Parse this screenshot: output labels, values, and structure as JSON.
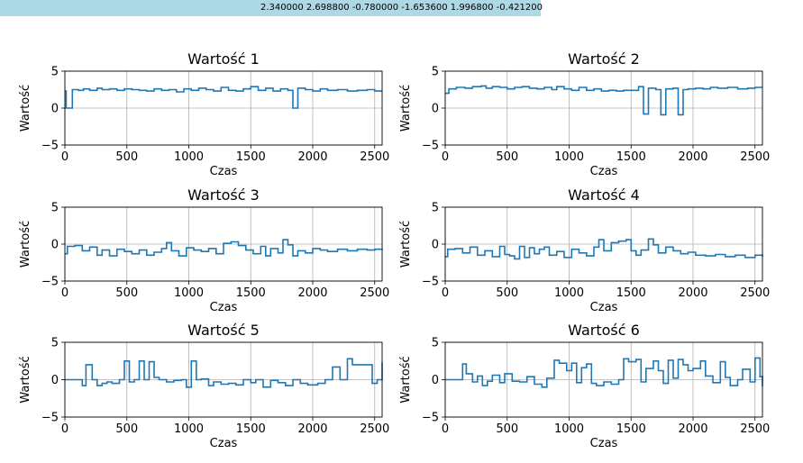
{
  "header": {
    "readout": "2.340000 2.698800 -0.780000 -1.653600 1.996800 -0.421200"
  },
  "colors": {
    "line": "#1f77b4",
    "grid": "#b0b0b0",
    "header_bg": "#add8e6"
  },
  "chart_data": [
    {
      "type": "line",
      "title": "Wartość 1",
      "xlabel": "Czas",
      "ylabel": "Wartość",
      "xlim": [
        0,
        2560
      ],
      "ylim": [
        -5,
        5
      ],
      "xticks": [
        0,
        500,
        1000,
        1500,
        2000,
        2500
      ],
      "yticks": [
        -5,
        0,
        5
      ],
      "xtick_labels": [
        "0",
        "500",
        "1000",
        "1500",
        "2000",
        "2500"
      ],
      "ytick_labels": [
        "−5",
        "0",
        "5"
      ],
      "grid": true,
      "series": [
        {
          "x": [
            0,
            10,
            60,
            110,
            150,
            200,
            260,
            300,
            360,
            420,
            480,
            540,
            600,
            660,
            720,
            780,
            840,
            900,
            960,
            1020,
            1080,
            1140,
            1200,
            1260,
            1320,
            1380,
            1440,
            1500,
            1560,
            1620,
            1680,
            1740,
            1800,
            1840,
            1880,
            1940,
            2000,
            2060,
            2120,
            2200,
            2280,
            2360,
            2440,
            2500,
            2560
          ],
          "y": [
            2.3,
            0.0,
            2.5,
            2.4,
            2.6,
            2.4,
            2.7,
            2.5,
            2.6,
            2.4,
            2.6,
            2.5,
            2.4,
            2.3,
            2.6,
            2.4,
            2.5,
            2.2,
            2.6,
            2.4,
            2.7,
            2.5,
            2.3,
            2.8,
            2.4,
            2.3,
            2.6,
            2.9,
            2.4,
            2.7,
            2.3,
            2.6,
            2.4,
            0.0,
            2.7,
            2.5,
            2.3,
            2.6,
            2.4,
            2.5,
            2.3,
            2.4,
            2.5,
            2.3,
            2.3
          ]
        }
      ]
    },
    {
      "type": "line",
      "title": "Wartość 2",
      "xlabel": "Czas",
      "ylabel": "Wartość",
      "xlim": [
        0,
        2560
      ],
      "ylim": [
        -5,
        5
      ],
      "xticks": [
        0,
        500,
        1000,
        1500,
        2000,
        2500
      ],
      "yticks": [
        -5,
        0,
        5
      ],
      "xtick_labels": [
        "0",
        "500",
        "1000",
        "1500",
        "2000",
        "2500"
      ],
      "ytick_labels": [
        "−5",
        "0",
        "5"
      ],
      "grid": true,
      "series": [
        {
          "x": [
            0,
            30,
            90,
            160,
            220,
            290,
            330,
            380,
            440,
            500,
            560,
            620,
            680,
            740,
            800,
            860,
            900,
            960,
            1020,
            1080,
            1140,
            1200,
            1260,
            1320,
            1380,
            1440,
            1500,
            1560,
            1600,
            1640,
            1700,
            1740,
            1780,
            1840,
            1880,
            1920,
            1960,
            2020,
            2080,
            2140,
            2200,
            2280,
            2360,
            2440,
            2500,
            2560
          ],
          "y": [
            2.0,
            2.6,
            2.8,
            2.7,
            2.9,
            3.0,
            2.7,
            2.9,
            2.8,
            2.6,
            2.8,
            2.9,
            2.7,
            2.6,
            2.8,
            2.5,
            2.9,
            2.6,
            2.4,
            2.8,
            2.4,
            2.6,
            2.3,
            2.4,
            2.3,
            2.4,
            2.4,
            2.9,
            -0.8,
            2.7,
            2.5,
            -0.9,
            2.6,
            2.7,
            -0.9,
            2.5,
            2.6,
            2.7,
            2.6,
            2.8,
            2.7,
            2.8,
            2.6,
            2.7,
            2.8,
            2.8
          ]
        }
      ]
    },
    {
      "type": "line",
      "title": "Wartość 3",
      "xlabel": "Czas",
      "ylabel": "Wartość",
      "xlim": [
        0,
        2560
      ],
      "ylim": [
        -5,
        5
      ],
      "xticks": [
        0,
        500,
        1000,
        1500,
        2000,
        2500
      ],
      "yticks": [
        -5,
        0,
        5
      ],
      "xtick_labels": [
        "0",
        "500",
        "1000",
        "1500",
        "2000",
        "2500"
      ],
      "ytick_labels": [
        "−5",
        "0",
        "5"
      ],
      "grid": true,
      "series": [
        {
          "x": [
            0,
            20,
            80,
            140,
            200,
            260,
            300,
            360,
            420,
            480,
            540,
            600,
            660,
            720,
            780,
            820,
            860,
            920,
            980,
            1040,
            1100,
            1160,
            1220,
            1280,
            1340,
            1400,
            1460,
            1520,
            1580,
            1620,
            1660,
            1720,
            1760,
            1800,
            1840,
            1880,
            1940,
            2000,
            2060,
            2120,
            2200,
            2280,
            2360,
            2440,
            2500,
            2560
          ],
          "y": [
            -1.3,
            -0.3,
            -0.2,
            -0.9,
            -0.4,
            -1.5,
            -0.8,
            -1.6,
            -0.7,
            -1.0,
            -1.3,
            -0.8,
            -1.5,
            -1.1,
            -0.6,
            0.2,
            -0.9,
            -1.6,
            -0.5,
            -0.8,
            -1.0,
            -0.6,
            -1.3,
            0.1,
            0.3,
            -0.2,
            -0.8,
            -1.3,
            -0.3,
            -1.6,
            -0.6,
            -1.2,
            0.6,
            -0.1,
            -1.6,
            -0.9,
            -1.2,
            -0.6,
            -0.8,
            -1.0,
            -0.7,
            -0.9,
            -0.7,
            -0.8,
            -0.7,
            -0.6
          ]
        }
      ]
    },
    {
      "type": "line",
      "title": "Wartość 4",
      "xlabel": "Czas",
      "ylabel": "Wartość",
      "xlim": [
        0,
        2560
      ],
      "ylim": [
        -5,
        5
      ],
      "xticks": [
        0,
        500,
        1000,
        1500,
        2000,
        2500
      ],
      "yticks": [
        -5,
        0,
        5
      ],
      "xtick_labels": [
        "0",
        "500",
        "1000",
        "1500",
        "2000",
        "2500"
      ],
      "ytick_labels": [
        "−5",
        "0",
        "5"
      ],
      "grid": true,
      "series": [
        {
          "x": [
            0,
            20,
            80,
            140,
            200,
            260,
            320,
            380,
            440,
            480,
            520,
            560,
            600,
            640,
            680,
            720,
            760,
            800,
            840,
            900,
            960,
            1020,
            1080,
            1140,
            1200,
            1240,
            1280,
            1340,
            1400,
            1460,
            1500,
            1540,
            1580,
            1640,
            1680,
            1720,
            1780,
            1840,
            1900,
            1960,
            2020,
            2100,
            2180,
            2260,
            2340,
            2420,
            2500,
            2560
          ],
          "y": [
            -1.7,
            -0.7,
            -0.6,
            -1.2,
            -0.4,
            -1.5,
            -0.9,
            -1.7,
            -0.3,
            -1.4,
            -1.6,
            -2.0,
            -0.3,
            -1.8,
            -0.5,
            -1.3,
            -0.7,
            -0.4,
            -1.5,
            -1.0,
            -1.8,
            -0.7,
            -1.2,
            -1.6,
            -0.4,
            0.6,
            -0.9,
            0.2,
            0.4,
            0.6,
            -0.9,
            -1.5,
            -0.8,
            0.7,
            -0.1,
            -1.2,
            -0.4,
            -0.9,
            -1.3,
            -1.1,
            -1.5,
            -1.6,
            -1.4,
            -1.7,
            -1.5,
            -1.8,
            -1.5,
            -1.7
          ]
        }
      ]
    },
    {
      "type": "line",
      "title": "Wartość 5",
      "xlabel": "Czas",
      "ylabel": "Wartość",
      "xlim": [
        0,
        2560
      ],
      "ylim": [
        -5,
        5
      ],
      "xticks": [
        0,
        500,
        1000,
        1500,
        2000,
        2500
      ],
      "yticks": [
        -5,
        0,
        5
      ],
      "xtick_labels": [
        "0",
        "500",
        "1000",
        "1500",
        "2000",
        "2500"
      ],
      "ytick_labels": [
        "−5",
        "0",
        "5"
      ],
      "grid": true,
      "series": [
        {
          "x": [
            0,
            140,
            170,
            220,
            260,
            300,
            340,
            380,
            440,
            480,
            520,
            560,
            600,
            640,
            680,
            720,
            760,
            820,
            880,
            940,
            980,
            1020,
            1060,
            1100,
            1160,
            1200,
            1260,
            1320,
            1380,
            1440,
            1500,
            1540,
            1600,
            1660,
            1720,
            1780,
            1840,
            1900,
            1960,
            2040,
            2100,
            2160,
            2220,
            2280,
            2320,
            2380,
            2420,
            2480,
            2520,
            2560
          ],
          "y": [
            0.0,
            -0.8,
            2.0,
            0.0,
            -0.8,
            -0.5,
            -0.3,
            -0.5,
            0.0,
            2.5,
            -0.3,
            0.0,
            2.5,
            0.0,
            2.4,
            0.3,
            0.0,
            -0.3,
            -0.1,
            0.0,
            -1.0,
            2.5,
            0.0,
            0.1,
            -0.8,
            -0.3,
            -0.6,
            -0.5,
            -0.7,
            0.0,
            -0.4,
            0.0,
            -1.0,
            -0.1,
            -0.4,
            -0.8,
            0.0,
            -0.5,
            -0.7,
            -0.5,
            0.0,
            1.7,
            0.0,
            2.8,
            2.0,
            2.0,
            2.0,
            -0.5,
            0.0,
            2.3
          ]
        }
      ]
    },
    {
      "type": "line",
      "title": "Wartość 6",
      "xlabel": "Czas",
      "ylabel": "Wartość",
      "xlim": [
        0,
        2560
      ],
      "ylim": [
        -5,
        5
      ],
      "xticks": [
        0,
        500,
        1000,
        1500,
        2000,
        2500
      ],
      "yticks": [
        -5,
        0,
        5
      ],
      "xtick_labels": [
        "0",
        "500",
        "1000",
        "1500",
        "2000",
        "2500"
      ],
      "ytick_labels": [
        "−5",
        "0",
        "5"
      ],
      "grid": true,
      "series": [
        {
          "x": [
            0,
            140,
            170,
            220,
            260,
            300,
            340,
            380,
            440,
            480,
            540,
            600,
            660,
            720,
            780,
            820,
            880,
            920,
            980,
            1020,
            1060,
            1100,
            1140,
            1180,
            1220,
            1280,
            1340,
            1400,
            1440,
            1480,
            1540,
            1580,
            1620,
            1680,
            1720,
            1760,
            1800,
            1840,
            1880,
            1920,
            1960,
            2000,
            2060,
            2100,
            2160,
            2220,
            2260,
            2300,
            2360,
            2400,
            2460,
            2500,
            2540,
            2560
          ],
          "y": [
            0.0,
            2.1,
            0.8,
            -0.3,
            0.5,
            -0.8,
            -0.2,
            0.6,
            -0.4,
            0.8,
            -0.2,
            -0.3,
            0.4,
            -0.6,
            -1.0,
            0.2,
            2.6,
            2.2,
            1.2,
            2.2,
            -0.4,
            1.6,
            2.1,
            -0.5,
            -0.8,
            -0.3,
            -0.6,
            0.0,
            2.8,
            2.4,
            2.7,
            -0.3,
            1.5,
            2.5,
            1.2,
            -0.5,
            2.6,
            0.2,
            2.7,
            2.0,
            1.2,
            1.5,
            2.5,
            0.5,
            -0.4,
            2.4,
            0.3,
            -0.8,
            0.0,
            1.4,
            -0.3,
            2.9,
            0.4,
            -0.9
          ]
        }
      ]
    }
  ]
}
